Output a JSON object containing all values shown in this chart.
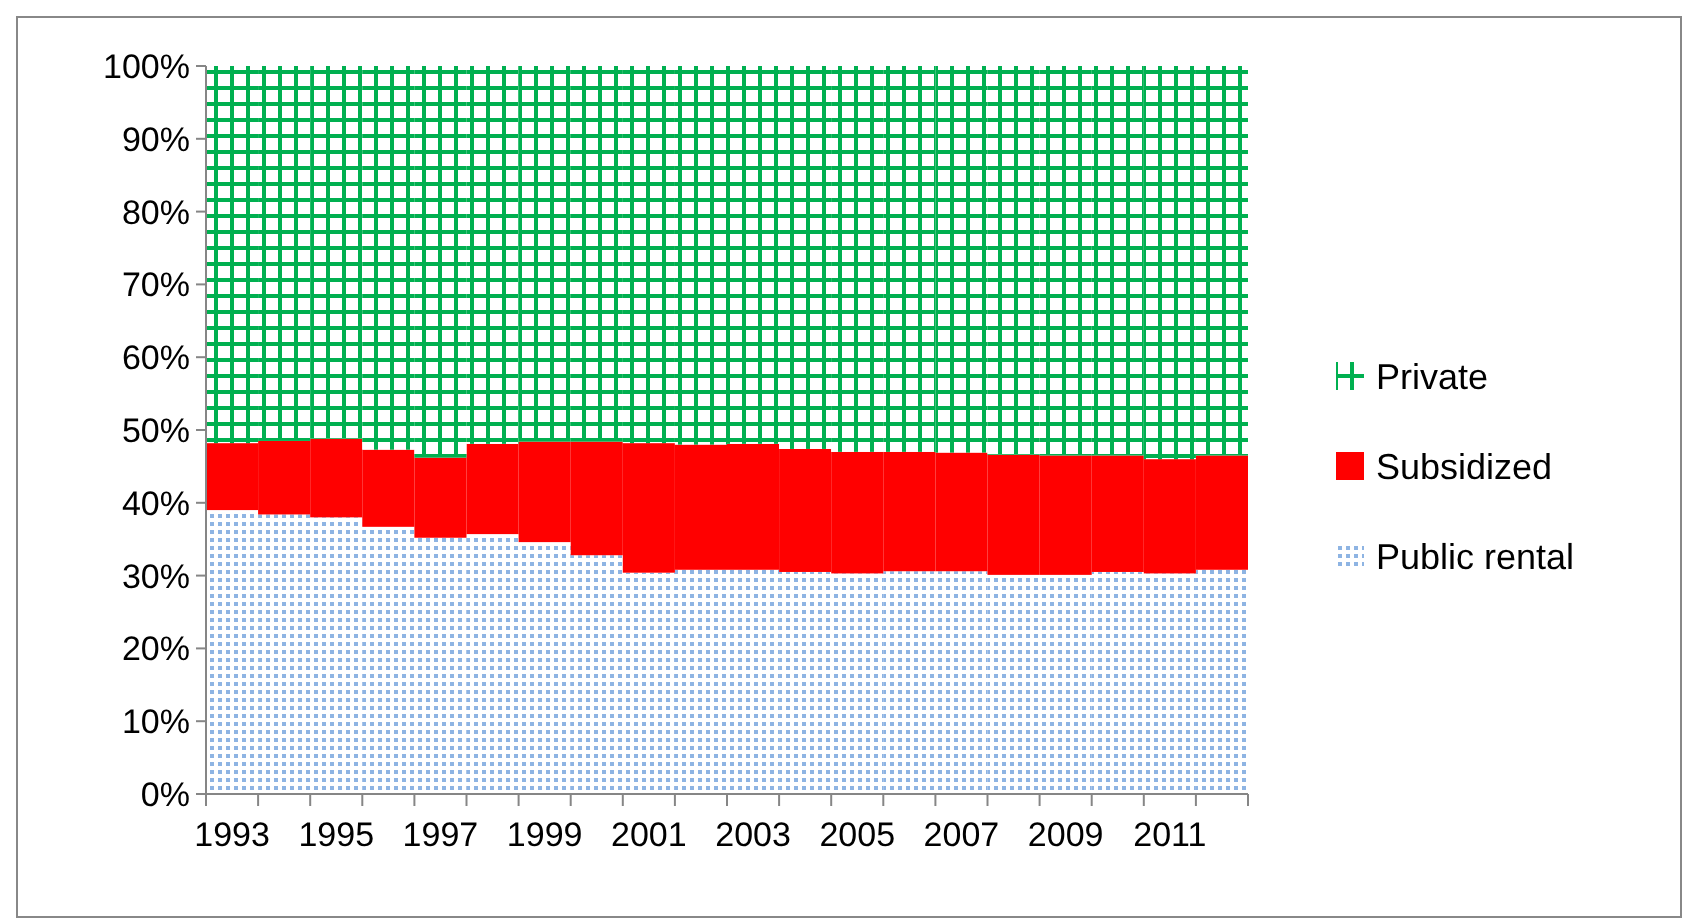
{
  "chart_data": {
    "type": "bar",
    "stacked": true,
    "categories": [
      "1993",
      null,
      "1995",
      null,
      "1997",
      null,
      "1999",
      null,
      "2001",
      null,
      "2003",
      null,
      "2005",
      null,
      "2007",
      null,
      "2009",
      null,
      "2011",
      null
    ],
    "series": [
      {
        "name": "Public rental",
        "color": "#8eb4e3",
        "values": [
          39.0,
          38.4,
          38.0,
          36.7,
          35.2,
          35.7,
          34.6,
          32.8,
          30.4,
          30.8,
          30.8,
          30.5,
          30.3,
          30.6,
          30.6,
          30.1,
          30.1,
          30.5,
          30.3,
          30.8
        ]
      },
      {
        "name": "Subsidized",
        "color": "#ff0000",
        "values": [
          9.2,
          10.1,
          10.8,
          10.6,
          11.0,
          12.4,
          13.8,
          15.6,
          17.8,
          17.2,
          17.3,
          16.9,
          16.7,
          16.4,
          16.3,
          16.5,
          16.4,
          16.0,
          15.7,
          15.7
        ]
      },
      {
        "name": "Private",
        "color": "#00b050",
        "values": [
          51.8,
          51.5,
          51.2,
          52.7,
          53.8,
          51.9,
          51.6,
          51.6,
          51.8,
          52.0,
          51.9,
          52.6,
          53.0,
          53.0,
          53.1,
          53.4,
          53.5,
          53.5,
          54.0,
          53.5
        ]
      }
    ],
    "ylim": [
      0,
      100
    ],
    "yticks": [
      {
        "value": 0,
        "label": "0%"
      },
      {
        "value": 10,
        "label": "10%"
      },
      {
        "value": 20,
        "label": "20%"
      },
      {
        "value": 30,
        "label": "30%"
      },
      {
        "value": 40,
        "label": "40%"
      },
      {
        "value": 50,
        "label": "50%"
      },
      {
        "value": 60,
        "label": "60%"
      },
      {
        "value": 70,
        "label": "70%"
      },
      {
        "value": 80,
        "label": "80%"
      },
      {
        "value": 90,
        "label": "90%"
      },
      {
        "value": 100,
        "label": "100%"
      }
    ],
    "grid": false,
    "legend": "right"
  }
}
